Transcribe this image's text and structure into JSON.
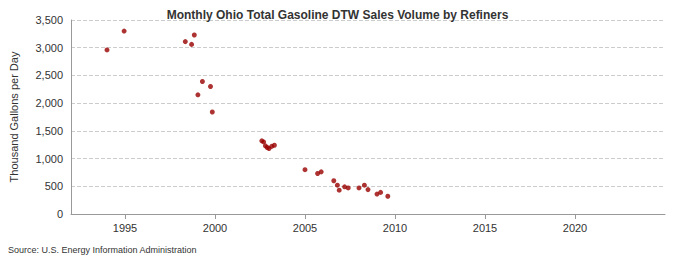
{
  "chart_data": {
    "type": "scatter",
    "title": "Monthly Ohio Total Gasoline DTW Sales Volume by Refiners",
    "y_label": "Thousand Gallons per Day",
    "source": "Source: U.S. Energy Information Administration",
    "x": [
      1994.0,
      1994.95,
      1998.35,
      1998.7,
      1998.85,
      1999.05,
      1999.3,
      1999.75,
      1999.85,
      2002.6,
      2002.7,
      2002.8,
      2002.9,
      2003.0,
      2003.15,
      2003.3,
      2005.0,
      2005.7,
      2005.9,
      2006.6,
      2006.8,
      2006.9,
      2007.2,
      2007.4,
      2008.0,
      2008.3,
      2008.5,
      2009.0,
      2009.2,
      2009.6
    ],
    "values": [
      2960,
      3300,
      3110,
      3060,
      3230,
      2150,
      2390,
      2300,
      1840,
      1320,
      1300,
      1230,
      1200,
      1180,
      1220,
      1240,
      800,
      730,
      760,
      600,
      520,
      430,
      490,
      470,
      470,
      520,
      440,
      360,
      390,
      320
    ],
    "color": "#990000",
    "marker": "circle",
    "xlim": [
      1992,
      2025
    ],
    "xticks": [
      1995,
      2000,
      2005,
      2010,
      2015,
      2020
    ],
    "ylim": [
      0,
      3500
    ],
    "yticks": [
      0,
      500,
      {
        "value": 1000,
        "label": "1,000"
      },
      {
        "value": 1500,
        "label": "1,500"
      },
      {
        "value": 2000,
        "label": "2,000"
      },
      {
        "value": 2500,
        "label": "2,500"
      },
      {
        "value": 3000,
        "label": "3,000"
      },
      {
        "value": 3500,
        "label": "3,500"
      }
    ],
    "grid": true
  }
}
